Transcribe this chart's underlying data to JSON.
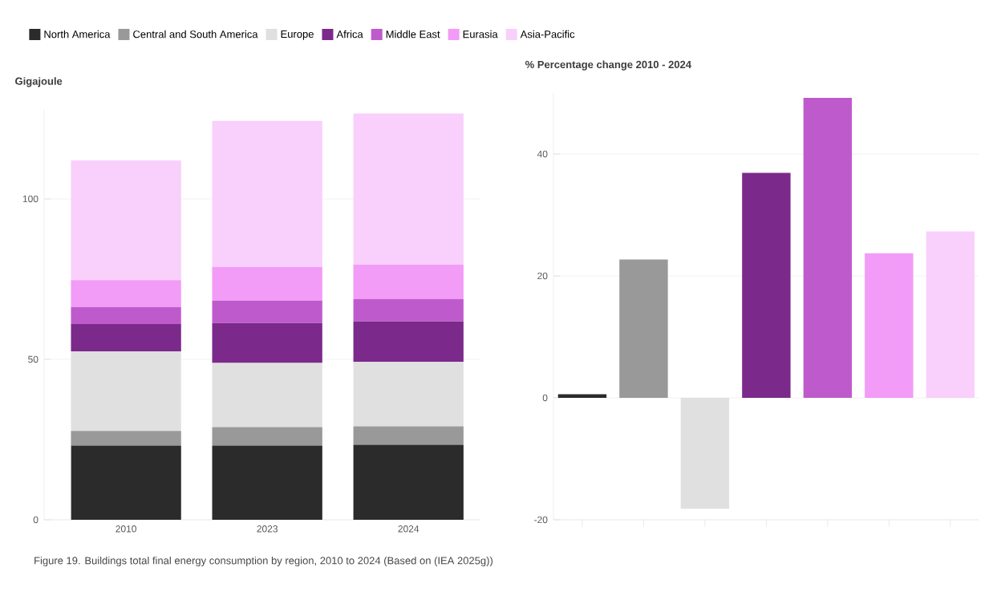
{
  "chart_data": [
    {
      "type": "bar",
      "stacked": true,
      "ylabel": "Gigajoule",
      "categories": [
        "2010",
        "2023",
        "2024"
      ],
      "ylim": [
        0,
        128
      ],
      "yticks": [
        0,
        50,
        100
      ],
      "grid": "y",
      "legend": "top",
      "series": [
        {
          "name": "North America",
          "color": "#2b2b2b",
          "values": [
            23.1,
            23.1,
            23.4
          ]
        },
        {
          "name": "Central and South America",
          "color": "#999999",
          "values": [
            4.6,
            5.8,
            5.7
          ]
        },
        {
          "name": "Europe",
          "color": "#e0e0e0",
          "values": [
            24.8,
            20.0,
            20.1
          ]
        },
        {
          "name": "Africa",
          "color": "#7b2a8b",
          "values": [
            8.5,
            12.4,
            12.6
          ]
        },
        {
          "name": "Middle East",
          "color": "#bf5acd",
          "values": [
            5.3,
            7.0,
            7.0
          ]
        },
        {
          "name": "Eurasia",
          "color": "#f29bf7",
          "values": [
            8.4,
            10.5,
            10.7
          ]
        },
        {
          "name": "Asia-Pacific",
          "color": "#f8d0fb",
          "values": [
            37.3,
            45.5,
            47.1
          ]
        }
      ],
      "annotations": [
        "Figure 19. Buildings total final energy consumption by region, 2010 to 2024 (Based on (IEA 2025g))"
      ]
    },
    {
      "type": "bar",
      "ylabel": "% Percentage change 2010 - 2024",
      "categories": [
        null,
        null,
        null,
        null,
        null,
        null,
        null
      ],
      "values": [
        0.6,
        22.7,
        -18.2,
        36.9,
        49.2,
        23.7,
        27.3
      ],
      "colors": [
        "#2b2b2b",
        "#999999",
        "#e0e0e0",
        "#7b2a8b",
        "#bf5acd",
        "#f29bf7",
        "#f8d0fb"
      ],
      "ylim": [
        -20,
        50
      ],
      "yticks": [
        -20,
        0,
        20,
        40
      ],
      "grid": "y",
      "tick_labels": "y"
    }
  ]
}
